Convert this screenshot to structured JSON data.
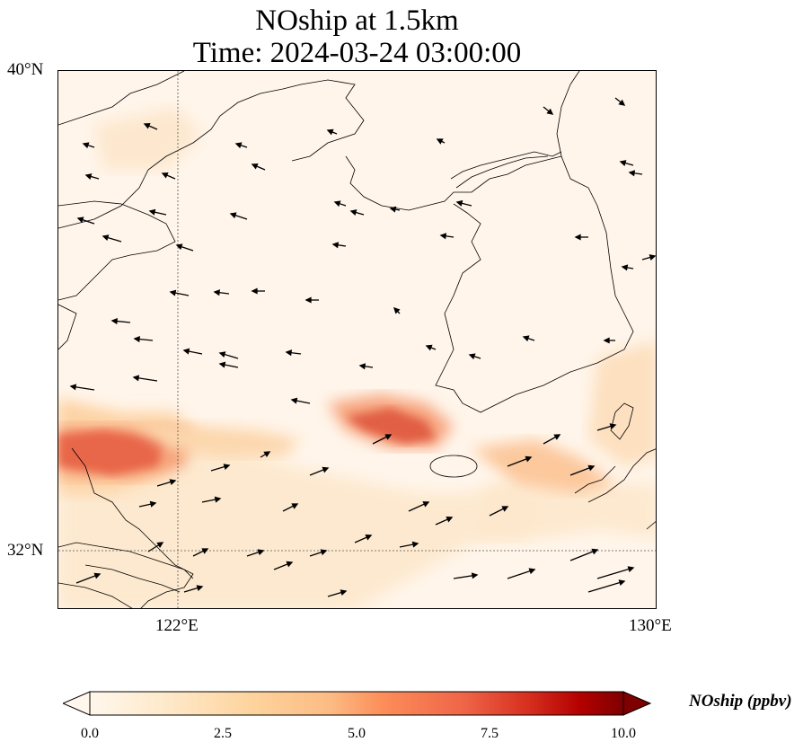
{
  "title": {
    "line1": "NOship at 1.5km",
    "line2": "Time: 2024-03-24 03:00:00"
  },
  "axes": {
    "lat_labels": [
      "40°N",
      "32°N"
    ],
    "lon_labels": [
      "122°E",
      "130°E"
    ],
    "lon_range": [
      120,
      130
    ],
    "lat_range": [
      31,
      40
    ],
    "gridlines": "dotted at 122°E and 32°N"
  },
  "colorbar": {
    "label": "NOship (ppbv)",
    "ticks": [
      "0.0",
      "2.5",
      "5.0",
      "7.5",
      "10.0"
    ],
    "range": [
      0,
      10
    ],
    "colormap": "OrRd",
    "extend": "both"
  },
  "field": {
    "variable": "NOship",
    "units": "ppbv",
    "features": [
      {
        "name": "high-west",
        "lon": 121.0,
        "lat": 33.8,
        "value": 5.5
      },
      {
        "name": "high-east",
        "lon": 126.0,
        "lat": 34.5,
        "value": 6.0
      },
      {
        "name": "mid-southeast",
        "lon": 128.0,
        "lat": 33.3,
        "value": 3.0
      },
      {
        "name": "southwest-band",
        "lon": 121.0,
        "lat": 31.5,
        "value": 2.0
      }
    ]
  }
}
